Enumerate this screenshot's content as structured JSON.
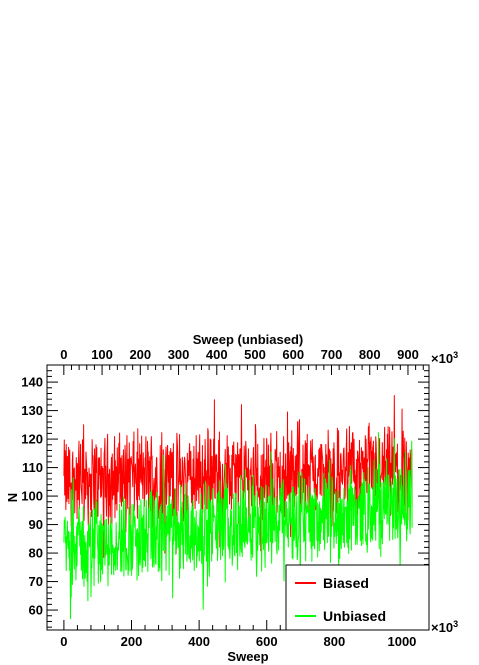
{
  "chart_data": {
    "type": "line",
    "xlabel": "Sweep",
    "x2label": "Sweep (unbiased)",
    "ylabel": "N",
    "x_exponent_label": "×10",
    "x_exponent_power": "3",
    "x2_exponent_label": "×10",
    "x2_exponent_power": "3",
    "xlim": [
      -50,
      1080
    ],
    "x2lim": [
      -44,
      955
    ],
    "ylim": [
      53,
      146
    ],
    "xticks": [
      0,
      200,
      400,
      600,
      800,
      1000
    ],
    "xtick_labels": [
      "0",
      "200",
      "400",
      "600",
      "800",
      "1000"
    ],
    "x2ticks": [
      0,
      100,
      200,
      300,
      400,
      500,
      600,
      700,
      800,
      900
    ],
    "x2tick_labels": [
      "0",
      "100",
      "200",
      "300",
      "400",
      "500",
      "600",
      "700",
      "800",
      "900"
    ],
    "yticks": [
      60,
      70,
      80,
      90,
      100,
      110,
      120,
      130,
      140
    ],
    "ytick_labels": [
      "60",
      "70",
      "80",
      "90",
      "100",
      "110",
      "120",
      "130",
      "140"
    ],
    "grid": false,
    "legend_position": "bottom-right",
    "series": [
      {
        "name": "Biased",
        "color": "#ff0000",
        "x_range": [
          0,
          1030
        ],
        "mean_profile": [
          [
            0,
            105
          ],
          [
            200,
            107
          ],
          [
            400,
            106
          ],
          [
            600,
            107
          ],
          [
            800,
            108
          ],
          [
            1030,
            108
          ]
        ],
        "min": 75,
        "max": 143
      },
      {
        "name": "Unbiased",
        "color": "#00ff00",
        "x_range": [
          0,
          1030
        ],
        "mean_profile": [
          [
            0,
            82
          ],
          [
            200,
            85
          ],
          [
            400,
            88
          ],
          [
            600,
            91
          ],
          [
            800,
            93
          ],
          [
            1030,
            98
          ]
        ],
        "min": 57,
        "max": 124
      }
    ]
  }
}
